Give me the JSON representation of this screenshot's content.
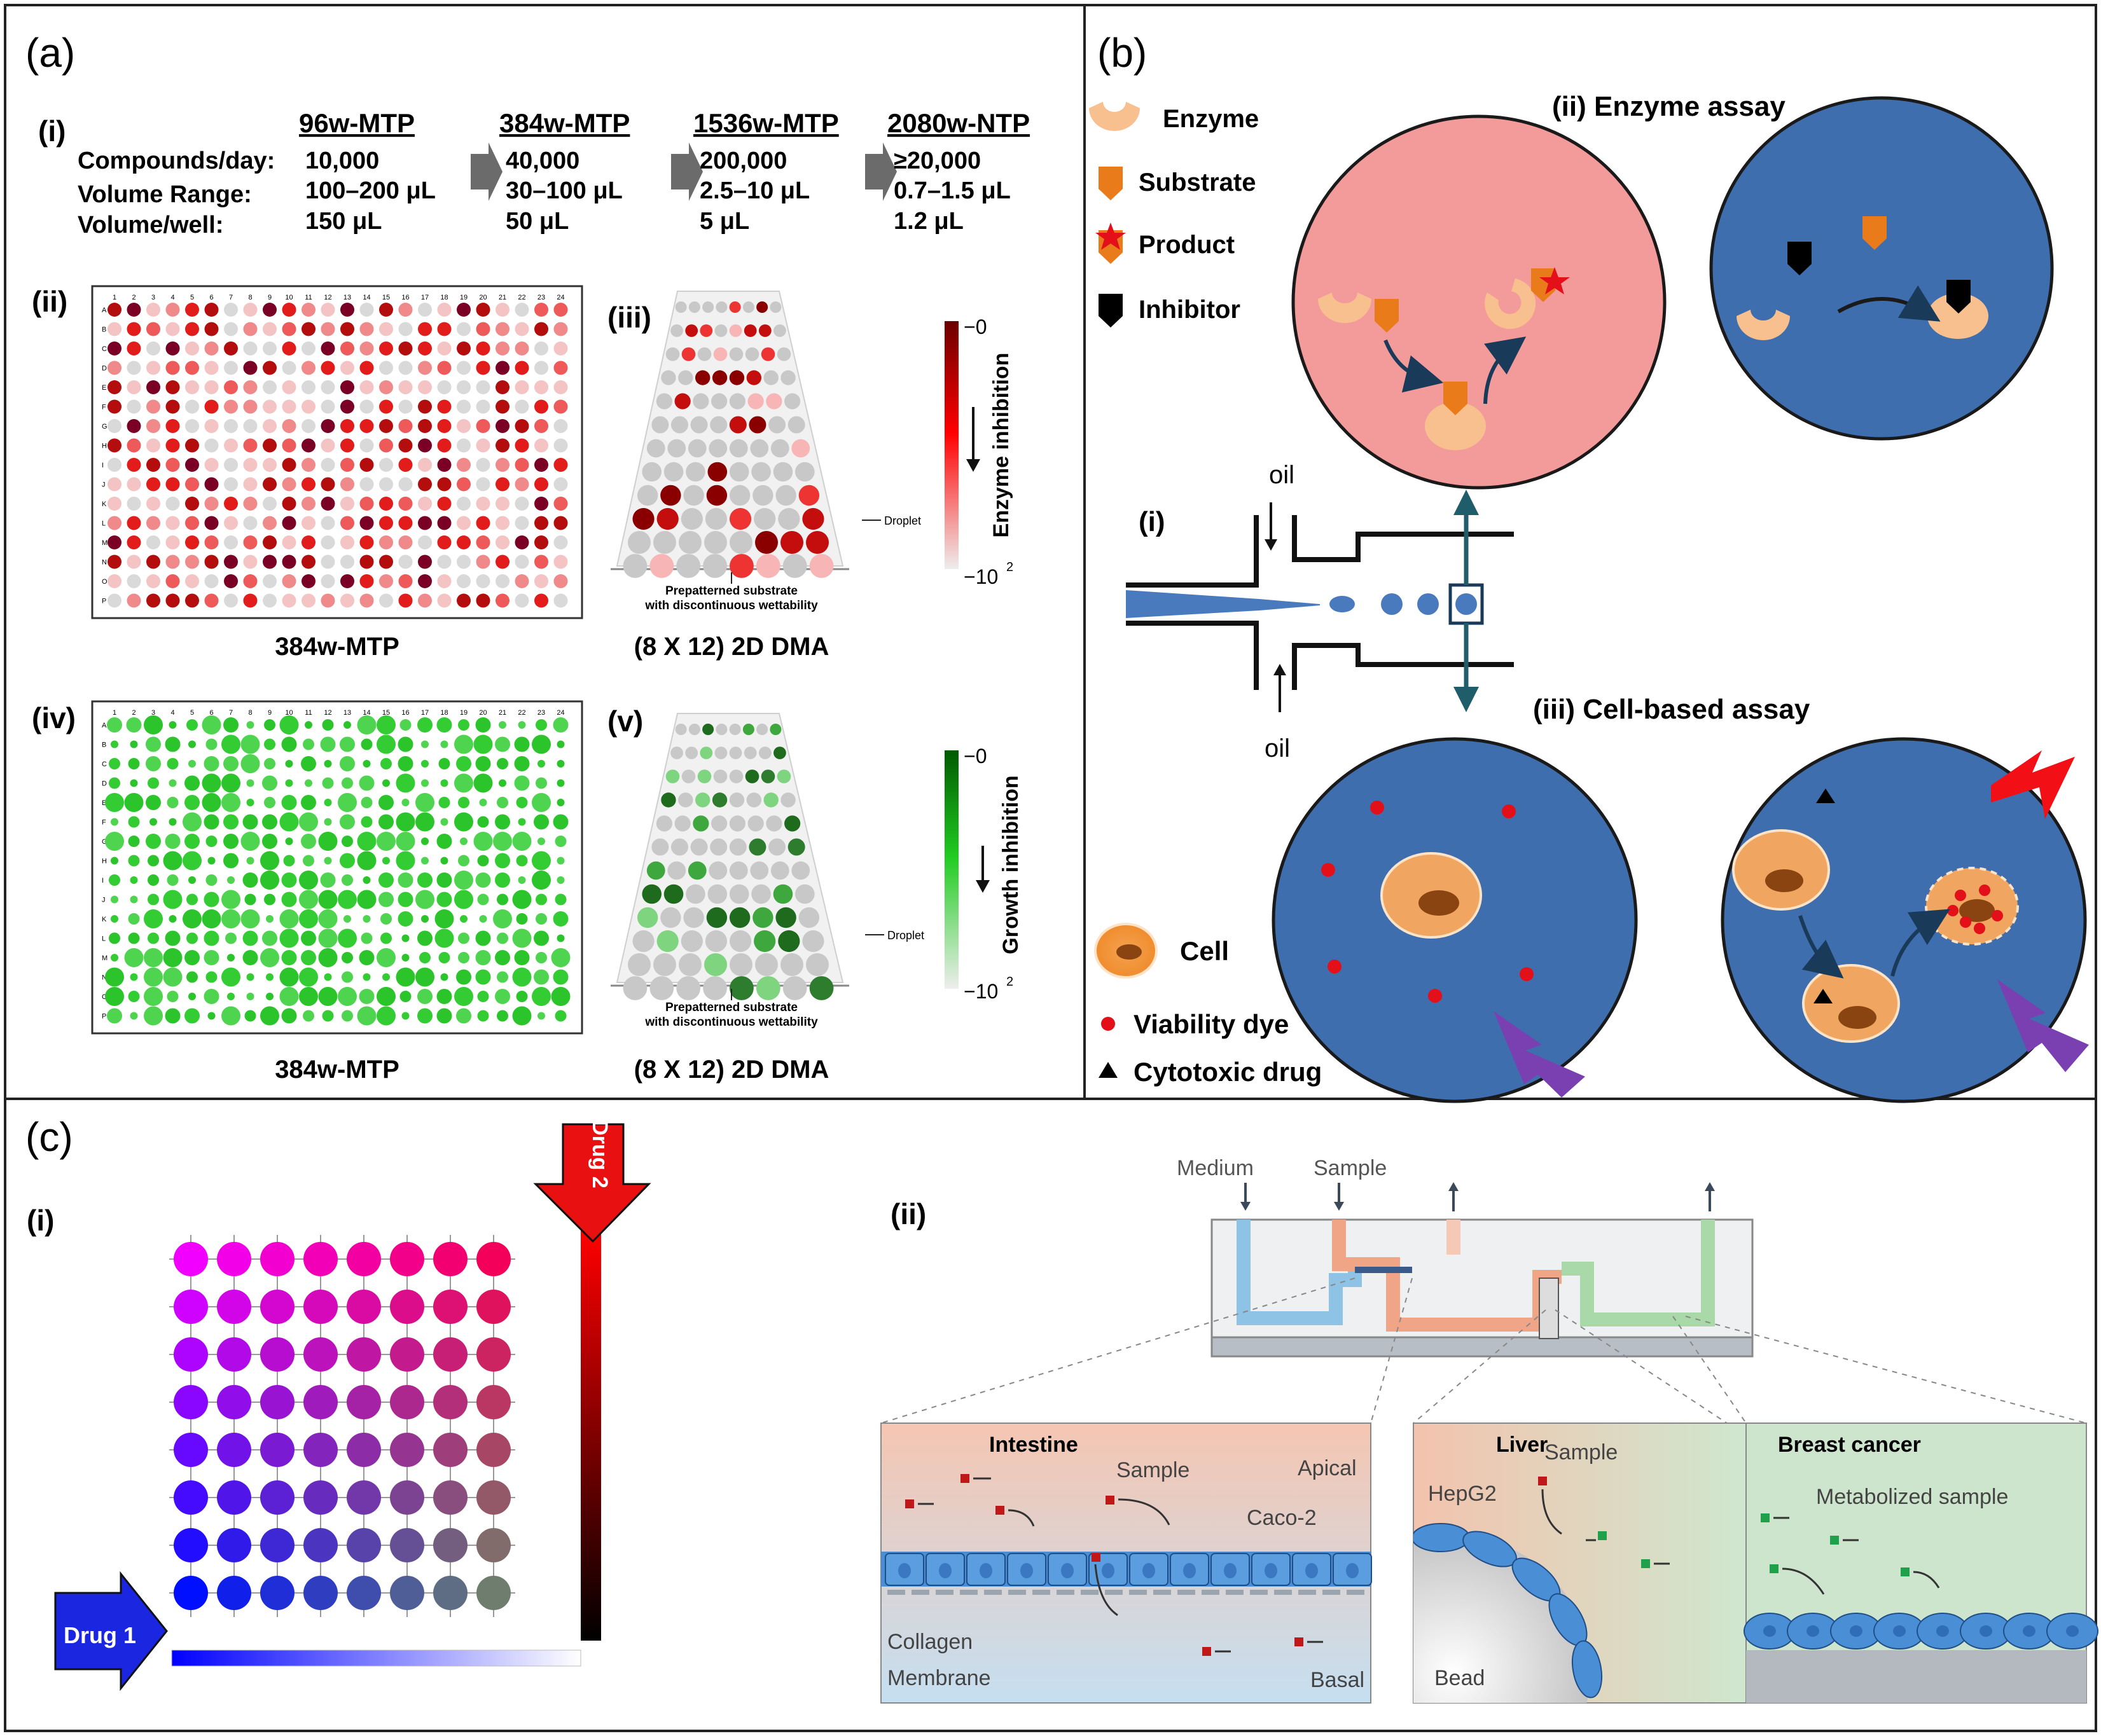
{
  "panel_a": {
    "label": "(a)",
    "i": {
      "label": "(i)",
      "row_labels": [
        "Compounds/day:",
        "Volume Range:",
        "Volume/well:"
      ],
      "formats": [
        {
          "name": "96w-MTP",
          "compounds": "10,000",
          "range": "100–200 μL",
          "well": "150 μL"
        },
        {
          "name": "384w-MTP",
          "compounds": "40,000",
          "range": "30–100 μL",
          "well": "50 μL"
        },
        {
          "name": "1536w-MTP",
          "compounds": "200,000",
          "range": "2.5–10 μL",
          "well": "5 μL"
        },
        {
          "name": "2080w-NTP",
          "compounds": "≥20,000",
          "range": "0.7–1.5 μL",
          "well": "1.2 μL"
        }
      ]
    },
    "ii": {
      "label": "(ii)",
      "caption": "384w-MTP"
    },
    "iii": {
      "label": "(iii)",
      "caption": "(8 X 12) 2D DMA",
      "droplet": "Droplet",
      "substrate_line1": "Prepatterned substrate",
      "substrate_line2": "with discontinuous wettability"
    },
    "scale_enzyme": {
      "title": "Enzyme inhibition",
      "top": "−0",
      "bottom": "−10",
      "bottom_exp": "2"
    },
    "iv": {
      "label": "(iv)",
      "caption": "384w-MTP"
    },
    "v": {
      "label": "(v)",
      "caption": "(8 X 12) 2D DMA",
      "droplet": "Droplet",
      "substrate_line1": "Prepatterned substrate",
      "substrate_line2": "with discontinuous wettability"
    },
    "scale_growth": {
      "title": "Growth inhibition",
      "top": "−0",
      "bottom": "−10",
      "bottom_exp": "2"
    },
    "plate_rows": [
      "A",
      "B",
      "C",
      "D",
      "E",
      "F",
      "G",
      "H",
      "I",
      "J",
      "K",
      "L",
      "M",
      "N",
      "O",
      "P"
    ],
    "plate_cols": [
      "1",
      "2",
      "3",
      "4",
      "5",
      "6",
      "7",
      "8",
      "9",
      "10",
      "11",
      "12",
      "13",
      "14",
      "15",
      "16",
      "17",
      "18",
      "19",
      "20",
      "21",
      "22",
      "23",
      "24"
    ]
  },
  "panel_b": {
    "label": "(b)",
    "legend": {
      "enzyme": "Enzyme",
      "substrate": "Substrate",
      "product": "Product",
      "inhibitor": "Inhibitor"
    },
    "ii_title": "(ii) Enzyme assay",
    "i_label": "(i)",
    "oil_top": "oil",
    "oil_bottom": "oil",
    "iii_title": "(iii) Cell-based assay",
    "legend2": {
      "cell": "Cell",
      "dye": "Viability dye",
      "drug": "Cytotoxic drug"
    }
  },
  "panel_c": {
    "label": "(c)",
    "i_label": "(i)",
    "drug1": "Drug 1",
    "drug2": "Drug 2",
    "ii_label": "(ii)",
    "chip": {
      "medium": "Medium",
      "sample": "Sample"
    },
    "intestine": {
      "title": "Intestine",
      "apical": "Apical",
      "sample": "Sample",
      "caco2": "Caco-2",
      "collagen": "Collagen",
      "membrane": "Membrane",
      "basal": "Basal"
    },
    "liver": {
      "title": "Liver",
      "sample": "Sample",
      "hepg2": "HepG2",
      "bead": "Bead"
    },
    "breast": {
      "title": "Breast cancer",
      "metabolized": "Metabolized sample"
    }
  },
  "colors": {
    "border": "#222222",
    "enzyme_bg": "#f39b9b",
    "blue_bg": "#3f6eae",
    "orange": "#e97b1b",
    "red": "#e3101a",
    "green": "#2ec02e"
  }
}
